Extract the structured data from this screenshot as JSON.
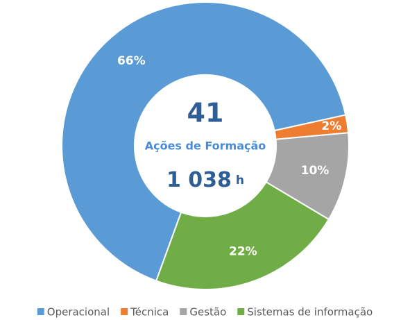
{
  "chart_data": {
    "type": "donut",
    "categories": [
      "Operacional",
      "Técnica",
      "Gestão",
      "Sistemas de informação"
    ],
    "values": [
      66,
      2,
      10,
      22
    ],
    "value_labels": [
      "66%",
      "2%",
      "10%",
      "22%"
    ],
    "colors": [
      "#5b9bd5",
      "#ed7d31",
      "#a5a5a5",
      "#70ad47"
    ],
    "center_value": "41",
    "center_label": "Ações de Formação",
    "hours": "1 038",
    "hours_unit": "h",
    "legend": "bottom"
  }
}
